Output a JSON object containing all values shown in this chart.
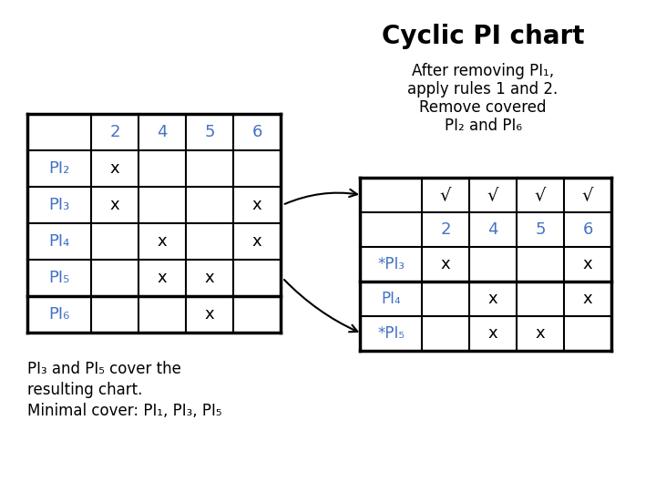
{
  "title": "Cyclic PI chart",
  "subtitle_lines": [
    "After removing PI₁,",
    "apply rules 1 and 2.",
    "Remove covered",
    "PI₂ and PI₆"
  ],
  "bottom_text_lines": [
    "PI₃ and PI₅ cover the",
    "resulting chart.",
    "Minimal cover: PI₁, PI₃, PI₅"
  ],
  "left_table": {
    "col_headers": [
      "2",
      "4",
      "5",
      "6"
    ],
    "row_headers": [
      "PI₂",
      "PI₃",
      "PI₄",
      "PI₅",
      "PI₆"
    ],
    "cells": [
      [
        "x",
        "",
        "",
        ""
      ],
      [
        "x",
        "",
        "",
        "x"
      ],
      [
        "",
        "x",
        "",
        "x"
      ],
      [
        "",
        "x",
        "x",
        ""
      ],
      [
        "",
        "",
        "x",
        ""
      ]
    ]
  },
  "right_table": {
    "check_row": [
      "√",
      "√",
      "√",
      "√"
    ],
    "col_headers": [
      "2",
      "4",
      "5",
      "6"
    ],
    "row_headers": [
      "*PI₃",
      "PI₄",
      "*PI₅"
    ],
    "cells": [
      [
        "x",
        "",
        "",
        "x"
      ],
      [
        "",
        "x",
        "",
        "x"
      ],
      [
        "",
        "x",
        "x",
        ""
      ]
    ]
  },
  "blue_color": "#4472C4",
  "dark_color": "#1a1a2e",
  "bg_color": "#ffffff",
  "title_fontsize": 20,
  "header_fontsize": 13,
  "cell_fontsize": 13,
  "text_fontsize": 12
}
